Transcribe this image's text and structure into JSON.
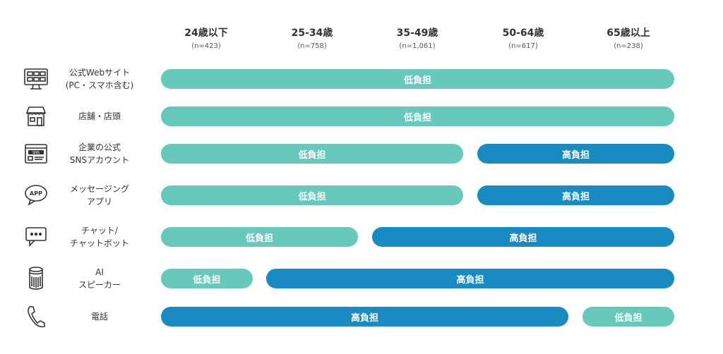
{
  "chart_data": {
    "type": "table",
    "columns": [
      {
        "label": "24歳以下",
        "n": "(n=423)"
      },
      {
        "label": "25-34歳",
        "n": "(n=758)"
      },
      {
        "label": "35-49歳",
        "n": "(n=1,061)"
      },
      {
        "label": "50-64歳",
        "n": "(n=617)"
      },
      {
        "label": "65歳以上",
        "n": "(n=238)"
      }
    ],
    "legend": {
      "low": "低負担",
      "high": "高負担"
    },
    "colors": {
      "low": "#66c9bb",
      "high": "#1a8bc2"
    },
    "rows": [
      {
        "label_lines": [
          "公式Webサイト",
          "(PC・スマホ含む)"
        ],
        "icon": "monitor-icon",
        "segments": [
          {
            "level": "low",
            "label": "低負担",
            "from": 1,
            "to": 5
          }
        ]
      },
      {
        "label_lines": [
          "店舗・店頭"
        ],
        "icon": "storefront-icon",
        "segments": [
          {
            "level": "low",
            "label": "低負担",
            "from": 1,
            "to": 5
          }
        ]
      },
      {
        "label_lines": [
          "企業の公式",
          "SNSアカウント"
        ],
        "icon": "sns-browser-icon",
        "segments": [
          {
            "level": "low",
            "label": "低負担",
            "from": 1,
            "to": 3
          },
          {
            "level": "high",
            "label": "高負担",
            "from": 4,
            "to": 5
          }
        ]
      },
      {
        "label_lines": [
          "メッセージング",
          "アプリ"
        ],
        "icon": "app-speech-bubble-icon",
        "segments": [
          {
            "level": "low",
            "label": "低負担",
            "from": 1,
            "to": 3
          },
          {
            "level": "high",
            "label": "高負担",
            "from": 4,
            "to": 5
          }
        ]
      },
      {
        "label_lines": [
          "チャット/",
          "チャットボット"
        ],
        "icon": "chat-bubble-icon",
        "segments": [
          {
            "level": "low",
            "label": "低負担",
            "from": 1,
            "to": 2
          },
          {
            "level": "high",
            "label": "高負担",
            "from": 3,
            "to": 5
          }
        ]
      },
      {
        "label_lines": [
          "AI",
          "スピーカー"
        ],
        "icon": "smart-speaker-icon",
        "segments": [
          {
            "level": "low",
            "label": "低負担",
            "from": 1,
            "to": 1
          },
          {
            "level": "high",
            "label": "高負担",
            "from": 2,
            "to": 5
          }
        ]
      },
      {
        "label_lines": [
          "電話"
        ],
        "icon": "phone-icon",
        "segments": [
          {
            "level": "high",
            "label": "高負担",
            "from": 1,
            "to": 4
          },
          {
            "level": "low",
            "label": "低負担",
            "from": 5,
            "to": 5
          }
        ]
      }
    ]
  }
}
